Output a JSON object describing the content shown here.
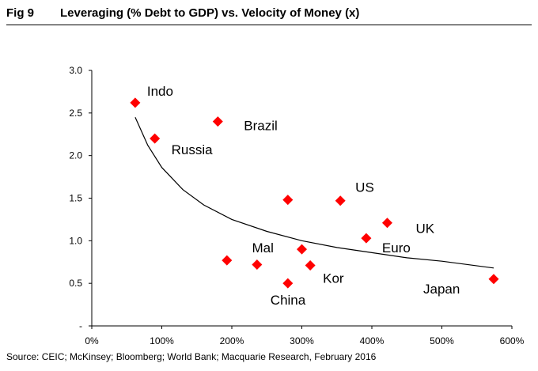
{
  "header": {
    "fig_label": "Fig 9",
    "title": "Leveraging (% Debt to GDP) vs. Velocity of Money (x)"
  },
  "source": "Source: CEIC; McKinsey; Bloomberg; World Bank; Macquarie Research, February 2016",
  "chart_data": {
    "type": "scatter",
    "title": "Leveraging (% Debt to GDP) vs. Velocity of Money (x)",
    "xlabel": "",
    "ylabel": "",
    "xlim": [
      0,
      600
    ],
    "ylim": [
      0,
      3.0
    ],
    "x_ticks": [
      0,
      100,
      200,
      300,
      400,
      500,
      600
    ],
    "x_tick_labels": [
      "0%",
      "100%",
      "200%",
      "300%",
      "400%",
      "500%",
      "600%"
    ],
    "y_ticks": [
      0,
      0.5,
      1.0,
      1.5,
      2.0,
      2.5,
      3.0
    ],
    "y_tick_labels": [
      "-",
      "0.5",
      "1.0",
      "1.5",
      "2.0",
      "2.5",
      "3.0"
    ],
    "grid": false,
    "marker_color": "#ff0000",
    "points": [
      {
        "label": "Indo",
        "x": 62,
        "y": 2.62
      },
      {
        "label": "Brazil",
        "x": 180,
        "y": 2.4
      },
      {
        "label": "Russia",
        "x": 90,
        "y": 2.2
      },
      {
        "label": "US",
        "x": 355,
        "y": 1.47
      },
      {
        "label": "",
        "x": 280,
        "y": 1.48
      },
      {
        "label": "UK",
        "x": 422,
        "y": 1.21
      },
      {
        "label": "Euro",
        "x": 392,
        "y": 1.03
      },
      {
        "label": "Mal",
        "x": 300,
        "y": 0.9
      },
      {
        "label": "",
        "x": 193,
        "y": 0.77
      },
      {
        "label": "",
        "x": 236,
        "y": 0.72
      },
      {
        "label": "Kor",
        "x": 312,
        "y": 0.71
      },
      {
        "label": "China",
        "x": 280,
        "y": 0.5
      },
      {
        "label": "Japan",
        "x": 574,
        "y": 0.55
      }
    ],
    "trendline": {
      "type": "power",
      "points": [
        [
          62,
          2.45
        ],
        [
          80,
          2.12
        ],
        [
          100,
          1.86
        ],
        [
          130,
          1.6
        ],
        [
          160,
          1.42
        ],
        [
          200,
          1.25
        ],
        [
          250,
          1.11
        ],
        [
          300,
          1.0
        ],
        [
          350,
          0.92
        ],
        [
          400,
          0.86
        ],
        [
          450,
          0.8
        ],
        [
          500,
          0.76
        ],
        [
          574,
          0.68
        ]
      ]
    }
  }
}
